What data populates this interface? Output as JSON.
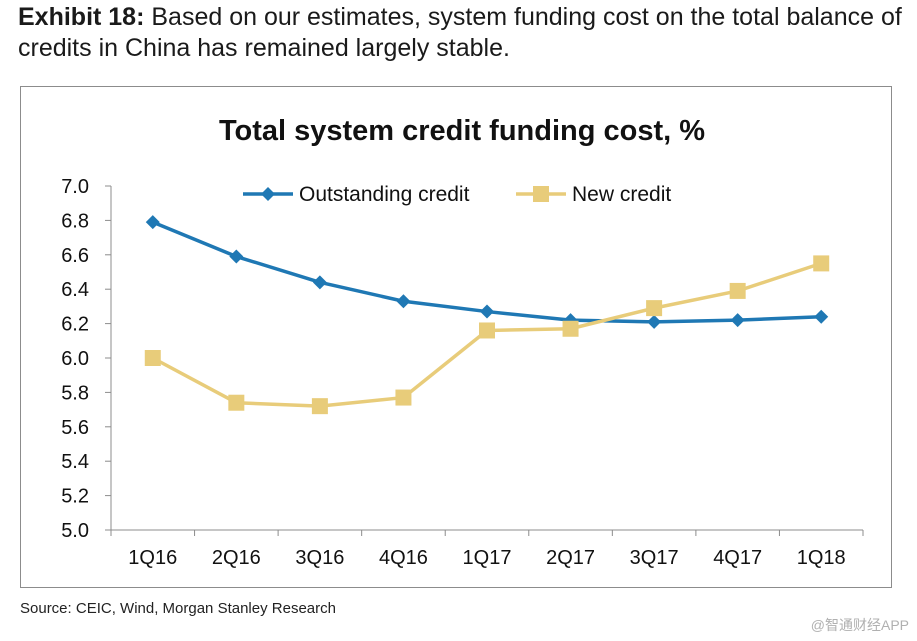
{
  "header": {
    "exhibit_label": "Exhibit 18:",
    "exhibit_text": " Based on our estimates, system funding cost on the total balance of credits in China has remained largely stable."
  },
  "source": "Source: CEIC, Wind, Morgan Stanley Research",
  "watermark": "@智通财经APP",
  "chart_data": {
    "type": "line",
    "title": "Total system credit funding cost, %",
    "xlabel": "",
    "ylabel": "",
    "categories": [
      "1Q16",
      "2Q16",
      "3Q16",
      "4Q16",
      "1Q17",
      "2Q17",
      "3Q17",
      "4Q17",
      "1Q18"
    ],
    "ylim": [
      5.0,
      7.0
    ],
    "yticks": [
      "5.0",
      "5.2",
      "5.4",
      "5.6",
      "5.8",
      "6.0",
      "6.2",
      "6.4",
      "6.6",
      "6.8",
      "7.0"
    ],
    "legend_position": "top",
    "grid": false,
    "series": [
      {
        "name": "Outstanding credit",
        "color": "#1f78b4",
        "marker": "diamond",
        "values": [
          6.79,
          6.59,
          6.44,
          6.33,
          6.27,
          6.22,
          6.21,
          6.22,
          6.24
        ]
      },
      {
        "name": "New credit",
        "color": "#e8cc7a",
        "marker": "square",
        "values": [
          6.0,
          5.74,
          5.72,
          5.77,
          6.16,
          6.17,
          6.29,
          6.39,
          6.55
        ]
      }
    ]
  }
}
